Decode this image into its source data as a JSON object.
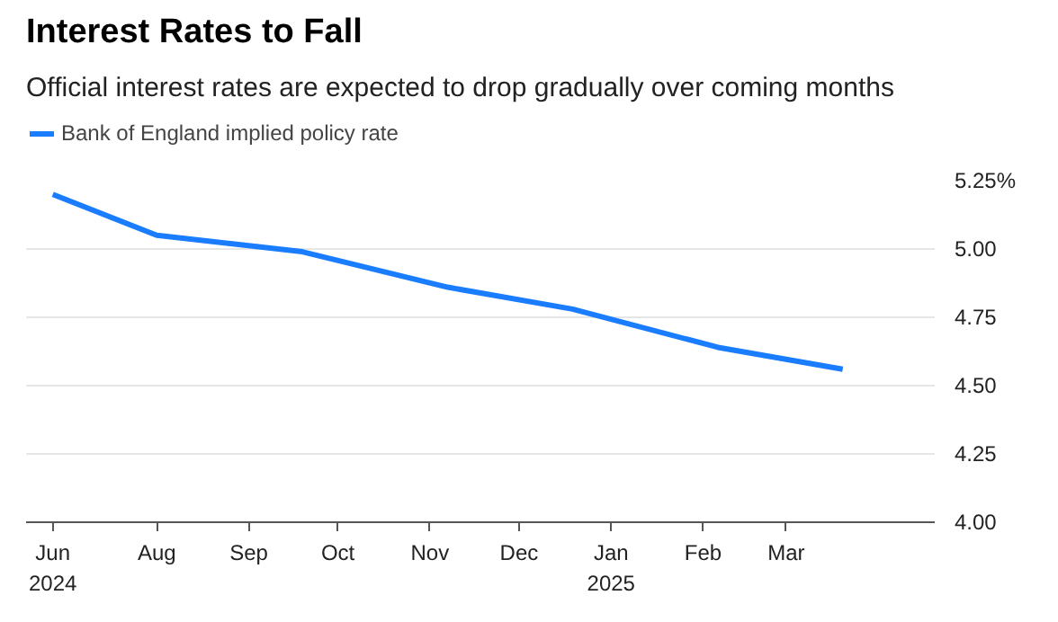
{
  "chart_data": {
    "type": "line",
    "title": "Interest Rates to Fall",
    "subtitle": "Official interest rates are expected to drop gradually over coming months",
    "x": [
      "2024-06-27",
      "2024-08-01",
      "2024-09-19",
      "2024-11-07",
      "2024-12-19",
      "2025-02-06",
      "2025-03-20"
    ],
    "series": [
      {
        "name": "Bank of England implied policy rate",
        "color": "#1a7cff",
        "values": [
          5.2,
          5.05,
          4.99,
          4.86,
          4.78,
          4.64,
          4.56
        ]
      }
    ],
    "xlim": [
      "2024-06-18",
      "2025-04-20"
    ],
    "xticks": [
      {
        "value": "2024-06-27",
        "label": "Jun\n2024"
      },
      {
        "value": "2024-08-01",
        "label": "Aug"
      },
      {
        "value": "2024-09-01",
        "label": "Sep"
      },
      {
        "value": "2024-10-01",
        "label": "Oct"
      },
      {
        "value": "2024-11-01",
        "label": "Nov"
      },
      {
        "value": "2024-12-01",
        "label": "Dec"
      },
      {
        "value": "2025-01-01",
        "label": "Jan\n2025"
      },
      {
        "value": "2025-02-01",
        "label": "Feb"
      },
      {
        "value": "2025-03-01",
        "label": "Mar"
      }
    ],
    "ylim": [
      4.0,
      5.25
    ],
    "yticks": [
      {
        "value": 4.0,
        "label": "4.00"
      },
      {
        "value": 4.25,
        "label": "4.25"
      },
      {
        "value": 4.5,
        "label": "4.50"
      },
      {
        "value": 4.75,
        "label": "4.75"
      },
      {
        "value": 5.0,
        "label": "5.00"
      },
      {
        "value": 5.25,
        "label": "5.25%"
      }
    ],
    "grid": "y",
    "legend": "top left",
    "line_style": "solid",
    "marker": "none"
  }
}
